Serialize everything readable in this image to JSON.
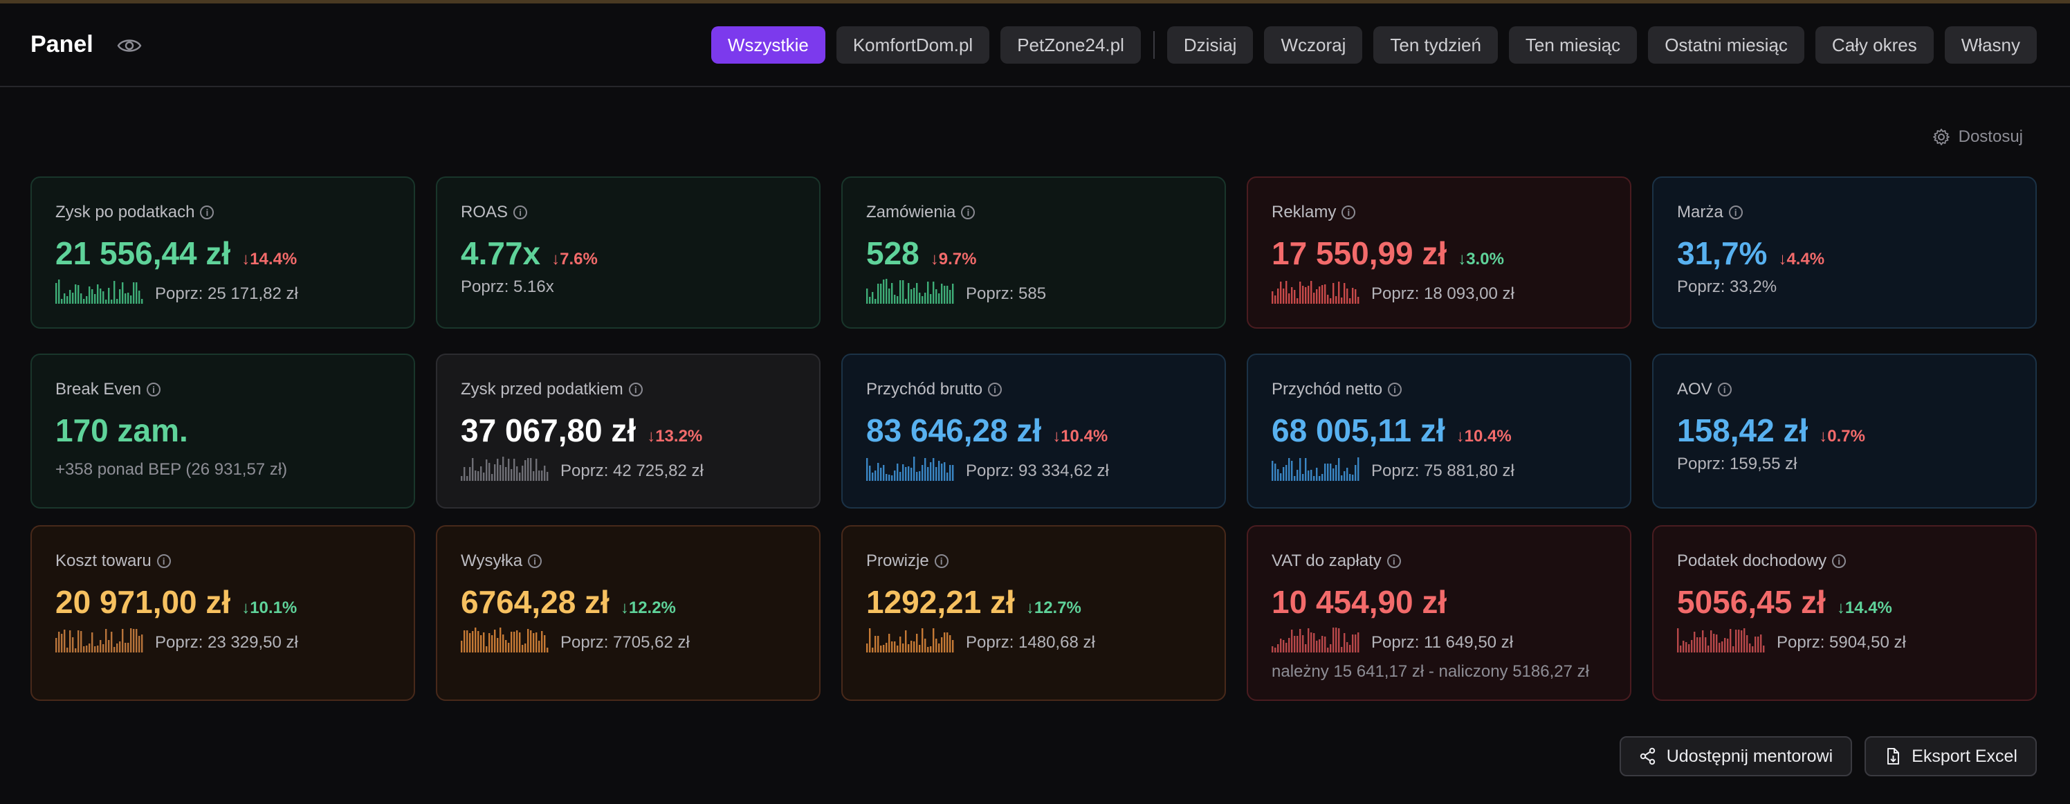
{
  "header": {
    "title": "Panel",
    "filters": [
      {
        "label": "Wszystkie",
        "active": true
      },
      {
        "label": "KomfortDom.pl",
        "active": false
      },
      {
        "label": "PetZone24.pl",
        "active": false
      },
      {
        "separator": true
      },
      {
        "label": "Dzisiaj",
        "active": false
      },
      {
        "label": "Wczoraj",
        "active": false
      },
      {
        "label": "Ten tydzień",
        "active": false
      },
      {
        "label": "Ten miesiąc",
        "active": false
      },
      {
        "label": "Ostatni miesiąc",
        "active": false
      },
      {
        "label": "Cały okres",
        "active": false
      },
      {
        "label": "Własny",
        "active": false
      }
    ]
  },
  "customize_label": "Dostosuj",
  "colors": {
    "accent": "#7c3aed",
    "positive": "#5fd39a",
    "negative": "#f36b6b",
    "blue": "#58b1f0",
    "yellow": "#f7c160"
  },
  "cards": [
    {
      "label": "Zysk po podatkach",
      "value": "21 556,44 zł",
      "change": "↓14.4%",
      "change_tone": "red",
      "prev": "Poprz: 25 171,82 zł",
      "tone": "green",
      "value_tone": "green",
      "spark": true,
      "spark_color": "#3fae78"
    },
    {
      "label": "ROAS",
      "value": "4.77x",
      "change": "↓7.6%",
      "change_tone": "red",
      "prev": "Poprz: 5.16x",
      "tone": "green",
      "value_tone": "green",
      "spark": false
    },
    {
      "label": "Zamówienia",
      "value": "528",
      "change": "↓9.7%",
      "change_tone": "red",
      "prev": "Poprz: 585",
      "tone": "green",
      "value_tone": "green",
      "spark": true,
      "spark_color": "#3fae78"
    },
    {
      "label": "Reklamy",
      "value": "17 550,99 zł",
      "change": "↓3.0%",
      "change_tone": "green",
      "prev": "Poprz: 18 093,00 zł",
      "tone": "red",
      "value_tone": "red",
      "spark": true,
      "spark_color": "#c84a4a"
    },
    {
      "label": "Marża",
      "value": "31,7%",
      "change": "↓4.4%",
      "change_tone": "red",
      "prev": "Poprz: 33,2%",
      "tone": "blue",
      "value_tone": "blue",
      "spark": false
    },
    {
      "label": "Break Even",
      "value": "170 zam.",
      "change": "",
      "change_tone": "red",
      "prev": "",
      "extra_inline": "+358 ponad BEP (26 931,57 zł)",
      "tone": "green",
      "value_tone": "green",
      "spark": false
    },
    {
      "label": "Zysk przed podatkiem",
      "value": "37 067,80 zł",
      "change": "↓13.2%",
      "change_tone": "red",
      "prev": "Poprz: 42 725,82 zł",
      "tone": "gray",
      "value_tone": "white",
      "spark": true,
      "spark_color": "#6f6f76"
    },
    {
      "label": "Przychód brutto",
      "value": "83 646,28 zł",
      "change": "↓10.4%",
      "change_tone": "red",
      "prev": "Poprz: 93 334,62 zł",
      "tone": "blue",
      "value_tone": "blue",
      "spark": true,
      "spark_color": "#3a86c4"
    },
    {
      "label": "Przychód netto",
      "value": "68 005,11 zł",
      "change": "↓10.4%",
      "change_tone": "red",
      "prev": "Poprz: 75 881,80 zł",
      "tone": "blue",
      "value_tone": "blue",
      "spark": true,
      "spark_color": "#3a86c4"
    },
    {
      "label": "AOV",
      "value": "158,42 zł",
      "change": "↓0.7%",
      "change_tone": "red",
      "prev": "Poprz: 159,55 zł",
      "tone": "blue",
      "value_tone": "blue",
      "spark": false
    },
    {
      "label": "Koszt towaru",
      "value": "20 971,00 zł",
      "change": "↓10.1%",
      "change_tone": "green",
      "prev": "Poprz: 23 329,50 zł",
      "tone": "orange",
      "value_tone": "yellow",
      "spark": true,
      "spark_color": "#b8743a"
    },
    {
      "label": "Wysyłka",
      "value": "6764,28 zł",
      "change": "↓12.2%",
      "change_tone": "green",
      "prev": "Poprz: 7705,62 zł",
      "tone": "orange",
      "value_tone": "yellow",
      "spark": true,
      "spark_color": "#c67a35"
    },
    {
      "label": "Prowizje",
      "value": "1292,21 zł",
      "change": "↓12.7%",
      "change_tone": "green",
      "prev": "Poprz: 1480,68 zł",
      "tone": "orange",
      "value_tone": "yellow",
      "spark": true,
      "spark_color": "#c67a35"
    },
    {
      "label": "VAT do zapłaty",
      "value": "10 454,90 zł",
      "change": "",
      "change_tone": "green",
      "prev": "Poprz: 11 649,50 zł",
      "extra": "należny 15 641,17 zł - naliczony 5186,27 zł",
      "tone": "red",
      "value_tone": "red",
      "spark": true,
      "spark_color": "#b8484a"
    },
    {
      "label": "Podatek dochodowy",
      "value": "5056,45 zł",
      "change": "↓14.4%",
      "change_tone": "green",
      "prev": "Poprz: 5904,50 zł",
      "tone": "red",
      "value_tone": "red",
      "spark": true,
      "spark_color": "#b8484a"
    }
  ],
  "actions": {
    "share_label": "Udostępnij mentorowi",
    "export_label": "Eksport Excel"
  }
}
